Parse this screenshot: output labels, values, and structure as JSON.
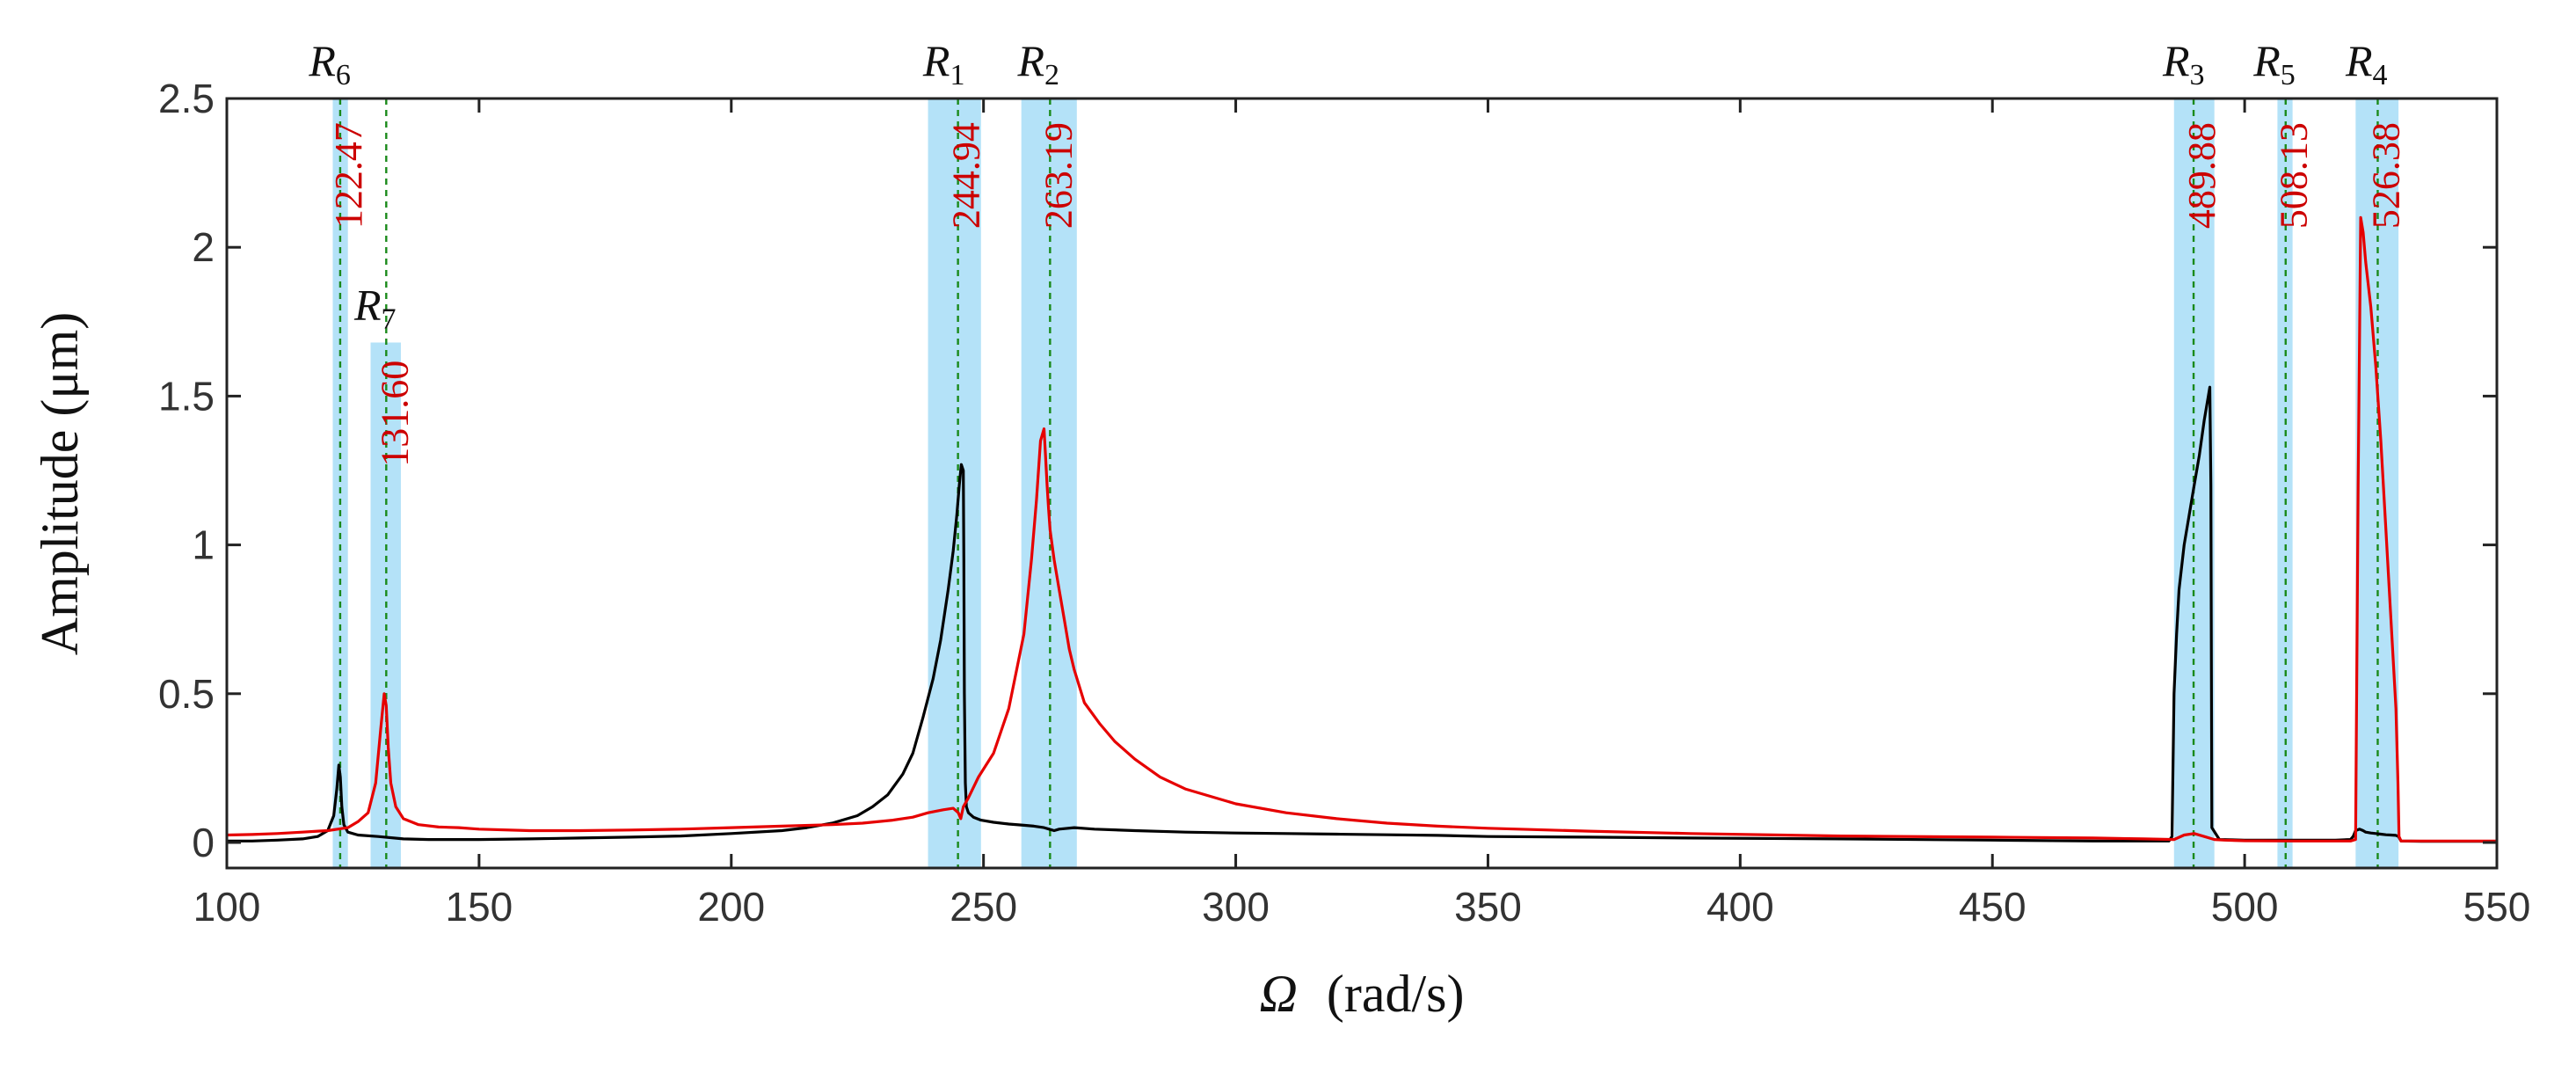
{
  "chart_data": {
    "type": "line",
    "title": "",
    "xlabel": "Ω (rad/s)",
    "xlabel_symbol": "Ω",
    "xlabel_unit": "(rad/s)",
    "ylabel": "Amplitude (μm)",
    "xlim": [
      100,
      550
    ],
    "ylim": [
      -0.1,
      2.5
    ],
    "xticks": [
      100,
      150,
      200,
      250,
      300,
      350,
      400,
      450,
      500,
      550
    ],
    "xtick_labels": [
      "100",
      "150",
      "200",
      "250",
      "300",
      "350",
      "400",
      "450",
      "500",
      "550"
    ],
    "yticks": [
      0,
      0.5,
      1,
      1.5,
      2,
      2.5
    ],
    "ytick_labels": [
      "0",
      "0.5",
      "1",
      "1.5",
      "2",
      "2.5"
    ],
    "grid": false,
    "resonance_bands": [
      {
        "label": "R",
        "sub": "6",
        "x_from": 121.0,
        "x_to": 124.0,
        "y_top": 2.5
      },
      {
        "label": "R",
        "sub": "7",
        "x_from": 128.5,
        "x_to": 134.5,
        "y_top": 1.68
      },
      {
        "label": "R",
        "sub": "1",
        "x_from": 239.0,
        "x_to": 249.5,
        "y_top": 2.5
      },
      {
        "label": "R",
        "sub": "2",
        "x_from": 257.5,
        "x_to": 268.5,
        "y_top": 2.5
      },
      {
        "label": "R",
        "sub": "3",
        "x_from": 486.0,
        "x_to": 494.0,
        "y_top": 2.5
      },
      {
        "label": "R",
        "sub": "5",
        "x_from": 506.5,
        "x_to": 509.5,
        "y_top": 2.5
      },
      {
        "label": "R",
        "sub": "4",
        "x_from": 522.0,
        "x_to": 530.5,
        "y_top": 2.5
      }
    ],
    "critical_speeds": [
      {
        "value": 122.47,
        "label": "122.47",
        "y_top": 2.5
      },
      {
        "value": 131.6,
        "label": "131.60",
        "y_top": 2.5
      },
      {
        "value": 244.94,
        "label": "244.94",
        "y_top": 2.5
      },
      {
        "value": 263.19,
        "label": "263.19",
        "y_top": 2.5
      },
      {
        "value": 489.88,
        "label": "489.88",
        "y_top": 2.5
      },
      {
        "value": 508.13,
        "label": "508.13",
        "y_top": 2.5
      },
      {
        "value": 526.38,
        "label": "526.38",
        "y_top": 2.5
      }
    ],
    "series": [
      {
        "name": "black",
        "color": "#000000",
        "x": [
          100,
          105,
          110,
          115,
          118,
          120,
          121.2,
          121.8,
          122.2,
          122.5,
          122.8,
          123.2,
          124,
          126,
          130,
          135,
          140,
          150,
          160,
          170,
          180,
          190,
          200,
          210,
          215,
          220,
          225,
          228,
          231,
          234,
          236,
          238,
          240,
          241.5,
          243,
          244,
          244.7,
          245.2,
          245.6,
          246.0,
          246.1,
          246.2,
          246.4,
          246.6,
          247,
          248,
          249.5,
          252,
          255,
          258,
          260,
          262,
          263,
          264,
          265,
          268,
          272,
          280,
          290,
          300,
          310,
          320,
          330,
          340,
          350,
          370,
          390,
          420,
          450,
          470,
          480,
          485,
          485.6,
          486,
          486.5,
          487,
          488,
          489,
          490,
          491,
          492,
          492.8,
          493.1,
          493.3,
          493.5,
          495,
          500,
          510,
          518,
          521,
          521.5,
          522,
          522.8,
          523.5,
          524,
          525,
          526,
          527,
          528,
          529,
          530,
          530.5,
          531,
          535,
          540,
          550
        ],
        "y": [
          0.005,
          0.005,
          0.008,
          0.012,
          0.02,
          0.04,
          0.09,
          0.18,
          0.26,
          0.22,
          0.12,
          0.06,
          0.035,
          0.025,
          0.02,
          0.012,
          0.01,
          0.01,
          0.012,
          0.015,
          0.018,
          0.022,
          0.03,
          0.04,
          0.05,
          0.065,
          0.09,
          0.12,
          0.16,
          0.23,
          0.3,
          0.42,
          0.55,
          0.68,
          0.85,
          0.98,
          1.1,
          1.2,
          1.27,
          1.25,
          0.95,
          0.5,
          0.2,
          0.12,
          0.1,
          0.085,
          0.075,
          0.068,
          0.062,
          0.058,
          0.055,
          0.05,
          0.045,
          0.04,
          0.045,
          0.05,
          0.045,
          0.04,
          0.035,
          0.032,
          0.03,
          0.028,
          0.026,
          0.024,
          0.02,
          0.018,
          0.015,
          0.012,
          0.008,
          0.005,
          0.005,
          0.005,
          0.02,
          0.5,
          0.7,
          0.85,
          1.0,
          1.1,
          1.2,
          1.3,
          1.42,
          1.5,
          1.53,
          1.2,
          0.05,
          0.01,
          0.008,
          0.008,
          0.008,
          0.01,
          0.02,
          0.04,
          0.045,
          0.04,
          0.035,
          0.032,
          0.03,
          0.028,
          0.026,
          0.025,
          0.024,
          0.02,
          0.005,
          0.004,
          0.004,
          0.004
        ]
      },
      {
        "name": "red",
        "color": "#e60000",
        "x": [
          100,
          105,
          110,
          115,
          118,
          120,
          122,
          124,
          126,
          128,
          129.5,
          130.5,
          131.2,
          131.6,
          132.0,
          132.5,
          133.5,
          135,
          138,
          142,
          146,
          150,
          160,
          170,
          180,
          190,
          200,
          210,
          220,
          226,
          232,
          236,
          239,
          242,
          244,
          245,
          245.5,
          246.0,
          247,
          249,
          252,
          255,
          258,
          259.5,
          260.5,
          261.3,
          262,
          262.3,
          262.6,
          262.9,
          263.2,
          264,
          265,
          266,
          267,
          268,
          270,
          273,
          276,
          280,
          285,
          290,
          300,
          310,
          320,
          330,
          340,
          350,
          370,
          390,
          420,
          450,
          470,
          480,
          486,
          488,
          490,
          492,
          494,
          496,
          500,
          510,
          518,
          521,
          522,
          522.5,
          523.0,
          523.5,
          524,
          525,
          526,
          527,
          528,
          529,
          530,
          530.4,
          530.6,
          531,
          535,
          540,
          550
        ],
        "y": [
          0.025,
          0.027,
          0.03,
          0.035,
          0.038,
          0.04,
          0.045,
          0.05,
          0.07,
          0.1,
          0.2,
          0.38,
          0.5,
          0.46,
          0.32,
          0.2,
          0.12,
          0.08,
          0.06,
          0.052,
          0.05,
          0.045,
          0.04,
          0.04,
          0.042,
          0.045,
          0.05,
          0.055,
          0.06,
          0.065,
          0.075,
          0.085,
          0.1,
          0.11,
          0.115,
          0.1,
          0.08,
          0.12,
          0.15,
          0.22,
          0.3,
          0.45,
          0.7,
          0.95,
          1.15,
          1.35,
          1.39,
          1.3,
          1.2,
          1.12,
          1.05,
          0.95,
          0.85,
          0.75,
          0.65,
          0.58,
          0.47,
          0.4,
          0.34,
          0.28,
          0.22,
          0.18,
          0.13,
          0.1,
          0.08,
          0.065,
          0.055,
          0.048,
          0.038,
          0.03,
          0.022,
          0.018,
          0.015,
          0.012,
          0.01,
          0.025,
          0.03,
          0.02,
          0.01,
          0.008,
          0.006,
          0.005,
          0.005,
          0.005,
          0.01,
          1.2,
          2.1,
          2.05,
          1.95,
          1.8,
          1.6,
          1.35,
          1.05,
          0.75,
          0.45,
          0.2,
          0.02,
          0.005,
          0.005,
          0.005,
          0.005
        ]
      }
    ]
  }
}
